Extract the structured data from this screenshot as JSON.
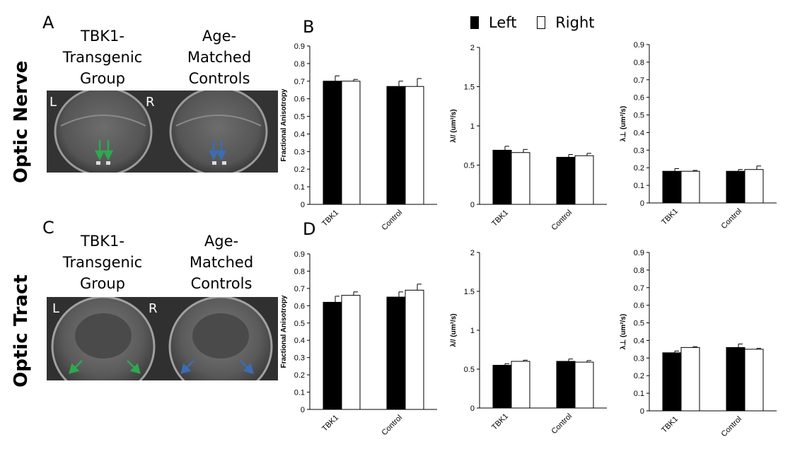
{
  "figure": {
    "panels": {
      "A": "A",
      "B": "B",
      "C": "C",
      "D": "D"
    },
    "row_labels": [
      "Optic Nerve",
      "Optic Tract"
    ],
    "groups": [
      {
        "lines": [
          "TBK1-",
          "Transgenic",
          "Group"
        ]
      },
      {
        "lines": [
          "Age-",
          "Matched",
          "Controls"
        ]
      }
    ],
    "side_labels": {
      "left": "L",
      "right": "R"
    },
    "legend": {
      "entries": [
        {
          "label": "Left",
          "color": "#000000"
        },
        {
          "label": "Right",
          "color": "#ffffff"
        }
      ]
    },
    "arrow_colors": {
      "transgenic": "#2fa84f",
      "control": "#3b6db5"
    }
  },
  "chart_data": [
    {
      "type": "bar",
      "categories": [
        "TBK1",
        "Control"
      ],
      "series": [
        {
          "name": "Left",
          "values": [
            0.7,
            0.67
          ],
          "errors": [
            0.03,
            0.03
          ]
        },
        {
          "name": "Right",
          "values": [
            0.7,
            0.67
          ],
          "errors": [
            0.01,
            0.045
          ]
        }
      ],
      "ylabel": "Fractional Anisotropy",
      "ylim": [
        0,
        0.9
      ],
      "yticks": [
        "0",
        "0.1",
        "0.2",
        "0.3",
        "0.4",
        "0.5",
        "0.6",
        "0.7",
        "0.8",
        "0.9"
      ]
    },
    {
      "type": "bar",
      "categories": [
        "TBK1",
        "Control"
      ],
      "series": [
        {
          "name": "Left",
          "values": [
            0.69,
            0.6
          ],
          "errors": [
            0.05,
            0.035
          ]
        },
        {
          "name": "Right",
          "values": [
            0.66,
            0.62
          ],
          "errors": [
            0.04,
            0.03
          ]
        }
      ],
      "ylabel": "λ// (um²/s)",
      "ylim": [
        0,
        2
      ],
      "yticks": [
        "0",
        "0.5",
        "1",
        "1.5",
        "2"
      ]
    },
    {
      "type": "bar",
      "categories": [
        "TBK1",
        "Control"
      ],
      "series": [
        {
          "name": "Left",
          "values": [
            0.18,
            0.18
          ],
          "errors": [
            0.015,
            0.01
          ]
        },
        {
          "name": "Right",
          "values": [
            0.18,
            0.19
          ],
          "errors": [
            0.005,
            0.02
          ]
        }
      ],
      "ylabel": "λ⊥ (um²/s)",
      "ylim": [
        0,
        0.9
      ],
      "yticks": [
        "0",
        "0.1",
        "0.2",
        "0.3",
        "0.4",
        "0.5",
        "0.6",
        "0.7",
        "0.8",
        "0.9"
      ]
    },
    {
      "type": "bar",
      "categories": [
        "TBK1",
        "Control"
      ],
      "series": [
        {
          "name": "Left",
          "values": [
            0.62,
            0.65
          ],
          "errors": [
            0.035,
            0.03
          ]
        },
        {
          "name": "Right",
          "values": [
            0.66,
            0.69
          ],
          "errors": [
            0.02,
            0.035
          ]
        }
      ],
      "ylabel": "Fractional Anisotropy",
      "ylim": [
        0,
        0.9
      ],
      "yticks": [
        "0",
        "0.1",
        "0.2",
        "0.3",
        "0.4",
        "0.5",
        "0.6",
        "0.7",
        "0.8",
        "0.9"
      ]
    },
    {
      "type": "bar",
      "categories": [
        "TBK1",
        "Control"
      ],
      "series": [
        {
          "name": "Left",
          "values": [
            0.55,
            0.6
          ],
          "errors": [
            0.02,
            0.03
          ]
        },
        {
          "name": "Right",
          "values": [
            0.6,
            0.59
          ],
          "errors": [
            0.015,
            0.02
          ]
        }
      ],
      "ylabel": "λ// (um²/s)",
      "ylim": [
        0,
        2
      ],
      "yticks": [
        "0",
        "0.5",
        "1",
        "1.5",
        "2"
      ]
    },
    {
      "type": "bar",
      "categories": [
        "TBK1",
        "Control"
      ],
      "series": [
        {
          "name": "Left",
          "values": [
            0.33,
            0.36
          ],
          "errors": [
            0.01,
            0.02
          ]
        },
        {
          "name": "Right",
          "values": [
            0.36,
            0.35
          ],
          "errors": [
            0.005,
            0.005
          ]
        }
      ],
      "ylabel": "λ⊥ (um²/s)",
      "ylim": [
        0,
        0.9
      ],
      "yticks": [
        "0",
        "0.1",
        "0.2",
        "0.3",
        "0.4",
        "0.5",
        "0.6",
        "0.7",
        "0.8",
        "0.9"
      ]
    }
  ]
}
